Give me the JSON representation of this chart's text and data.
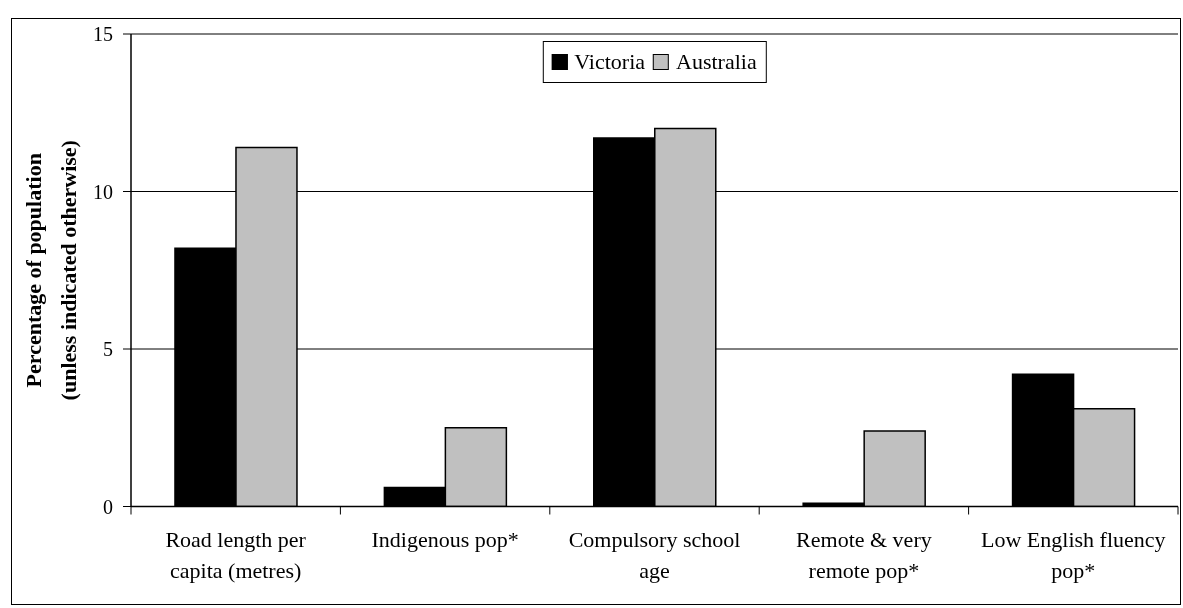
{
  "chart_data": {
    "type": "bar",
    "categories": [
      "Road length per capita (metres)",
      "Indigenous pop*",
      "Compulsory school age",
      "Remote & very remote pop*",
      "Low English fluency pop*"
    ],
    "series": [
      {
        "name": "Victoria",
        "color": "#000000",
        "values": [
          8.2,
          0.6,
          11.7,
          0.1,
          4.2
        ]
      },
      {
        "name": "Australia",
        "color": "#c0c0c0",
        "values": [
          11.4,
          2.5,
          12.0,
          2.4,
          3.1
        ]
      }
    ],
    "ylabel": "Percentage of population (unless indicated otherwise)",
    "ylim": [
      0,
      15
    ],
    "yticks": [
      0,
      5,
      10,
      15
    ],
    "grid": "y",
    "legend": "top"
  }
}
